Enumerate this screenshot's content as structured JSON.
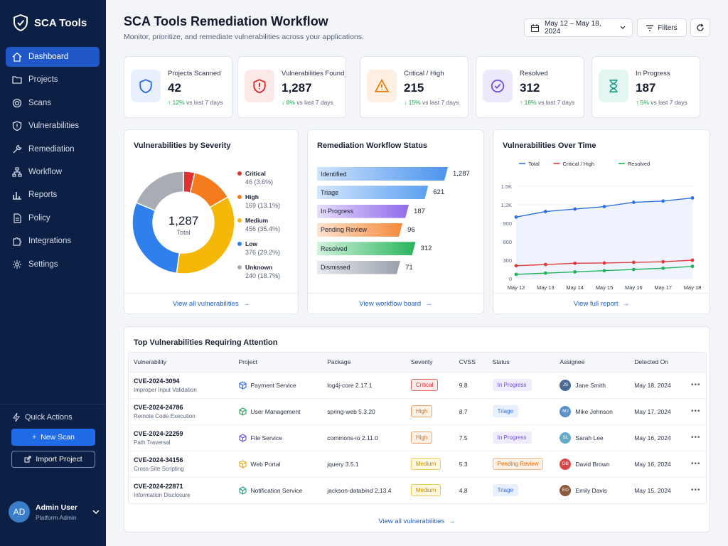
{
  "sidebar": {
    "brand": "SCA Tools",
    "items": [
      {
        "label": "Dashboard",
        "icon": "home-icon"
      },
      {
        "label": "Projects",
        "icon": "folder-icon"
      },
      {
        "label": "Scans",
        "icon": "target-icon"
      },
      {
        "label": "Vulnerabilities",
        "icon": "shield-alert-icon"
      },
      {
        "label": "Remediation",
        "icon": "wrench-icon"
      },
      {
        "label": "Workflow",
        "icon": "workflow-icon"
      },
      {
        "label": "Reports",
        "icon": "bar-chart-icon"
      },
      {
        "label": "Policy",
        "icon": "document-icon"
      },
      {
        "label": "Integrations",
        "icon": "puzzle-icon"
      },
      {
        "label": "Settings",
        "icon": "gear-icon"
      }
    ],
    "quick_actions": {
      "title": "Quick Actions",
      "new_scan": "New Scan",
      "import_project": "Import Project"
    },
    "user": {
      "initials": "AD",
      "name": "Admin User",
      "role": "Platform Admin"
    }
  },
  "header": {
    "title": "SCA Tools Remediation Workflow",
    "subtitle": "Monitor, prioritize, and remediate vulnerabilities across your applications.",
    "date_range": "May 12 – May 18, 2024",
    "filters": "Filters"
  },
  "stats": [
    {
      "label": "Projects Scanned",
      "value": "42",
      "trend": "↑ 12%",
      "trend_suffix": "vs last 7 days",
      "color": "#2563eb",
      "bg": "#e8f0fe"
    },
    {
      "label": "Vulnerabilities Found",
      "value": "1,287",
      "trend": "↓ 8%",
      "trend_suffix": "vs last 7 days",
      "color": "#dc2626",
      "bg": "#fde8e8"
    },
    {
      "label": "Critical / High",
      "value": "215",
      "trend": "↓ 15%",
      "trend_suffix": "vs last 7 days",
      "color": "#ea7a12",
      "bg": "#fdf0e3"
    },
    {
      "label": "Resolved",
      "value": "312",
      "trend": "↑ 18%",
      "trend_suffix": "vs last 7 days",
      "color": "#6d4bd8",
      "bg": "#eeeafc"
    },
    {
      "label": "In Progress",
      "value": "187",
      "trend": "↑ 5%",
      "trend_suffix": "vs last 7 days",
      "color": "#1f9c88",
      "bg": "#e3f6f2"
    }
  ],
  "severity": {
    "title": "Vulnerabilities by Severity",
    "total": "1,287",
    "total_label": "Total",
    "footer": "View all vulnerabilities",
    "items": [
      {
        "name": "Critical",
        "count": 46,
        "text": "46 (3.6%)",
        "color": "#e03131"
      },
      {
        "name": "High",
        "count": 169,
        "text": "169 (13.1%)",
        "color": "#f47c1c"
      },
      {
        "name": "Medium",
        "count": 456,
        "text": "456 (35.4%)",
        "color": "#f5b708"
      },
      {
        "name": "Low",
        "count": 376,
        "text": "376 (29.2%)",
        "color": "#2f80ed"
      },
      {
        "name": "Unknown",
        "count": 240,
        "text": "240 (18.7%)",
        "color": "#a8adb5"
      }
    ]
  },
  "workflow": {
    "title": "Remediation Workflow Status",
    "footer": "View workflow board",
    "stages": [
      {
        "label": "Identified",
        "value": 1287,
        "text": "1,287",
        "from": "#cfe3fb",
        "to": "#4b93ee"
      },
      {
        "label": "Triage",
        "value": 621,
        "text": "621",
        "from": "#d4e6fb",
        "to": "#5aa0f0"
      },
      {
        "label": "In Progress",
        "value": 187,
        "text": "187",
        "from": "#e6dcfb",
        "to": "#8f6be9"
      },
      {
        "label": "Pending Review",
        "value": 96,
        "text": "96",
        "from": "#fde4cf",
        "to": "#f5893a"
      },
      {
        "label": "Resolved",
        "value": 312,
        "text": "312",
        "from": "#d2f2dc",
        "to": "#28b45b"
      },
      {
        "label": "Dismissed",
        "value": 71,
        "text": "71",
        "from": "#e7e9ed",
        "to": "#9aa1ac"
      }
    ]
  },
  "chart_data": {
    "type": "line",
    "title": "Vulnerabilities Over Time",
    "footer": "View full report",
    "categories": [
      "May 12",
      "May 13",
      "May 14",
      "May 15",
      "May 16",
      "May 17",
      "May 18"
    ],
    "yticks": [
      "0",
      "300",
      "600",
      "900",
      "1.2K",
      "1.5K"
    ],
    "ylim": [
      0,
      1500
    ],
    "legend_position": "top",
    "series": [
      {
        "name": "Total",
        "color": "#2f6fe4",
        "values": [
          1000,
          1090,
          1130,
          1170,
          1240,
          1260,
          1310
        ]
      },
      {
        "name": "Critical / High",
        "color": "#e0393a",
        "values": [
          210,
          230,
          250,
          255,
          265,
          275,
          300
        ]
      },
      {
        "name": "Resolved",
        "color": "#22b25a",
        "values": [
          70,
          90,
          110,
          130,
          150,
          170,
          200
        ]
      }
    ]
  },
  "table": {
    "title": "Top Vulnerabilities Requiring Attention",
    "footer": "View all vulnerabilities",
    "columns": [
      "Vulnerability",
      "Project",
      "Package",
      "Severity",
      "CVSS",
      "Status",
      "Assignee",
      "Detected On"
    ],
    "rows": [
      {
        "id": "CVE-2024-3094",
        "desc": "Improper Input Validation",
        "project": "Payment Service",
        "proj_color": "#2563eb",
        "package": "log4j-core 2.17.1",
        "severity": "Critical",
        "cvss": "9.8",
        "status": "In Progress",
        "initials": "JS",
        "assignee": "Jane Smith",
        "av_color": "#4a6a94",
        "date": "May 18, 2024"
      },
      {
        "id": "CVE-2024-24786",
        "desc": "Remote Code Execution",
        "project": "User Management",
        "proj_color": "#22a35a",
        "package": "spring-web 5.3.20",
        "severity": "High",
        "cvss": "8.7",
        "status": "Triage",
        "initials": "MJ",
        "assignee": "Mike Johnson",
        "av_color": "#5a8fc7",
        "date": "May 17, 2024"
      },
      {
        "id": "CVE-2024-22259",
        "desc": "Path Traversal",
        "project": "File Service",
        "proj_color": "#6d4bd8",
        "package": "commons-io 2.11.0",
        "severity": "High",
        "cvss": "7.5",
        "status": "In Progress",
        "initials": "SL",
        "assignee": "Sarah Lee",
        "av_color": "#66a9c9",
        "date": "May 16, 2024"
      },
      {
        "id": "CVE-2024-34156",
        "desc": "Cross-Site Scripting",
        "project": "Web Portal",
        "proj_color": "#f0a20e",
        "package": "jquery 3.5.1",
        "severity": "Medium",
        "cvss": "5.3",
        "status": "Pending Review",
        "initials": "DB",
        "assignee": "David Brown",
        "av_color": "#d94848",
        "date": "May 16, 2024"
      },
      {
        "id": "CVE-2024-22871",
        "desc": "Information Disclosure",
        "project": "Notification Service",
        "proj_color": "#1f9c88",
        "package": "jackson-databind 2.13.4",
        "severity": "Medium",
        "cvss": "4.8",
        "status": "Triage",
        "initials": "ED",
        "assignee": "Emily Davis",
        "av_color": "#8a5a3c",
        "date": "May 15, 2024"
      }
    ]
  }
}
